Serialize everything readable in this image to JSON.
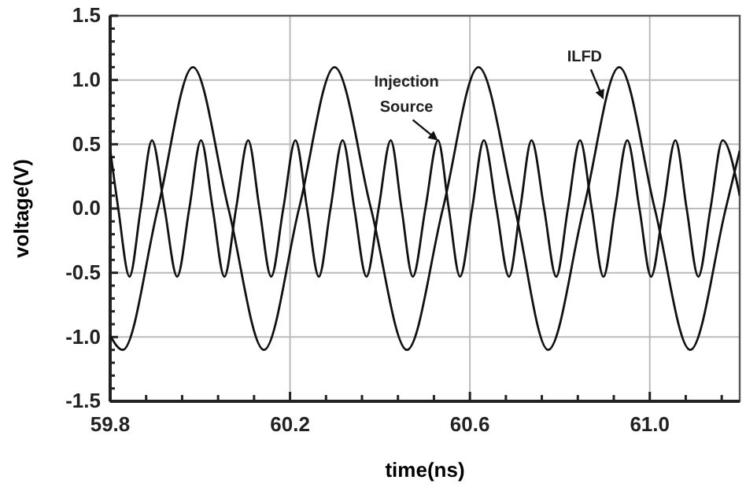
{
  "chart_data": {
    "type": "line",
    "xlabel": "time(ns)",
    "ylabel": "voltage(V)",
    "xlim": [
      59.8,
      61.2
    ],
    "ylim": [
      -1.5,
      1.5
    ],
    "xticks": [
      {
        "value": 59.8,
        "label": "59.8"
      },
      {
        "value": 59.88,
        "label": null
      },
      {
        "value": 59.96,
        "label": null
      },
      {
        "value": 60.04,
        "label": null
      },
      {
        "value": 60.12,
        "label": null
      },
      {
        "value": 60.2,
        "label": "60.2"
      },
      {
        "value": 60.28,
        "label": null
      },
      {
        "value": 60.36,
        "label": null
      },
      {
        "value": 60.44,
        "label": null
      },
      {
        "value": 60.52,
        "label": null
      },
      {
        "value": 60.6,
        "label": "60.6"
      },
      {
        "value": 60.68,
        "label": null
      },
      {
        "value": 60.76,
        "label": null
      },
      {
        "value": 60.84,
        "label": null
      },
      {
        "value": 60.92,
        "label": null
      },
      {
        "value": 61.0,
        "label": "61.0"
      },
      {
        "value": 61.08,
        "label": null
      },
      {
        "value": 61.16,
        "label": null
      }
    ],
    "yticks": [
      {
        "value": -1.5,
        "label": "-1.5"
      },
      {
        "value": -1.4,
        "label": null
      },
      {
        "value": -1.3,
        "label": null
      },
      {
        "value": -1.2,
        "label": null
      },
      {
        "value": -1.1,
        "label": null
      },
      {
        "value": -1.0,
        "label": "-1.0"
      },
      {
        "value": -0.9,
        "label": null
      },
      {
        "value": -0.8,
        "label": null
      },
      {
        "value": -0.7,
        "label": null
      },
      {
        "value": -0.6,
        "label": null
      },
      {
        "value": -0.5,
        "label": "-0.5"
      },
      {
        "value": -0.4,
        "label": null
      },
      {
        "value": -0.3,
        "label": null
      },
      {
        "value": -0.2,
        "label": null
      },
      {
        "value": -0.1,
        "label": null
      },
      {
        "value": 0,
        "label": "0.0"
      },
      {
        "value": 0.1,
        "label": null
      },
      {
        "value": 0.2,
        "label": null
      },
      {
        "value": 0.3,
        "label": null
      },
      {
        "value": 0.4,
        "label": null
      },
      {
        "value": 0.5,
        "label": "0.5"
      },
      {
        "value": 0.6,
        "label": null
      },
      {
        "value": 0.7,
        "label": null
      },
      {
        "value": 0.8,
        "label": null
      },
      {
        "value": 0.9,
        "label": null
      },
      {
        "value": 1.0,
        "label": "1.0"
      },
      {
        "value": 1.1,
        "label": null
      },
      {
        "value": 1.2,
        "label": null
      },
      {
        "value": 1.3,
        "label": null
      },
      {
        "value": 1.4,
        "label": null
      },
      {
        "value": 1.5,
        "label": "1.5"
      }
    ],
    "grid": true,
    "marker": "none",
    "line_style": "solid",
    "series": [
      {
        "color": "#111111",
        "x": [
          59.8,
          59.828,
          59.906,
          59.984,
          60.063,
          60.142,
          60.22,
          60.299,
          60.38,
          60.46,
          60.54,
          60.619,
          60.7,
          60.774,
          60.853,
          60.932,
          61.011,
          61.09,
          61.169,
          61.2
        ],
        "values": [
          -0.99,
          -1.1,
          0,
          1.1,
          0,
          -1.1,
          0,
          1.1,
          0,
          -1.1,
          0,
          1.1,
          0,
          -1.1,
          0,
          1.1,
          0,
          -1.1,
          0,
          0.45
        ]
      },
      {
        "color": "#111111",
        "x": [
          59.8,
          59.818,
          59.843,
          59.868,
          59.893,
          59.921,
          59.949,
          59.976,
          60.002,
          60.028,
          60.054,
          60.08,
          60.107,
          60.132,
          60.158,
          60.185,
          60.212,
          60.238,
          60.264,
          60.29,
          60.317,
          60.343,
          60.37,
          60.397,
          60.424,
          60.448,
          60.473,
          60.501,
          60.529,
          60.553,
          60.578,
          60.605,
          60.631,
          60.659,
          60.687,
          60.712,
          60.737,
          60.765,
          60.792,
          60.818,
          60.845,
          60.871,
          60.897,
          60.923,
          60.95,
          60.977,
          61.003,
          61.03,
          61.057,
          61.082,
          61.108,
          61.135,
          61.162,
          61.2
        ],
        "values": [
          0.46,
          0,
          -0.53,
          0,
          0.53,
          0,
          -0.53,
          0,
          0.53,
          0,
          -0.53,
          0,
          0.53,
          0,
          -0.53,
          0,
          0.53,
          0,
          -0.53,
          0,
          0.53,
          0,
          -0.53,
          0,
          0.53,
          0,
          -0.53,
          0,
          0.53,
          0,
          -0.53,
          0,
          0.53,
          0,
          -0.53,
          0,
          0.53,
          0,
          -0.53,
          0,
          0.53,
          0,
          -0.53,
          0,
          0.53,
          0,
          -0.53,
          0,
          0.53,
          0,
          -0.53,
          0,
          0.53,
          0.1
        ]
      }
    ],
    "annotations": [
      {
        "text": "Injection Source",
        "x": 60.529,
        "y": 0.53
      },
      {
        "text": "ILFD",
        "x": 60.897,
        "y": 0.85
      }
    ]
  }
}
